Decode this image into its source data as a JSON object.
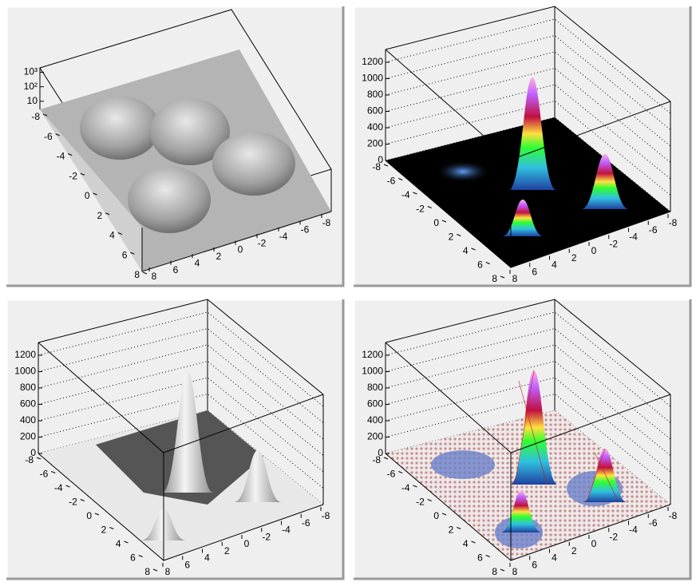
{
  "chart_data": [
    {
      "type": "surface",
      "log_z": true,
      "zlim": [
        1,
        2000
      ],
      "zticks": [
        10,
        {
          "value": 100,
          "label": "10²"
        },
        {
          "value": 1000,
          "label": "10³"
        }
      ],
      "xlim": [
        8,
        -8
      ],
      "xticks": [
        8,
        6,
        4,
        2,
        0,
        -2,
        -4,
        -6,
        -8
      ],
      "ylim": [
        -8,
        8
      ],
      "yticks": [
        -8,
        -6,
        -4,
        -2,
        0,
        2,
        4,
        6,
        8
      ],
      "color": "#a8a8a8"
    },
    {
      "type": "surface",
      "log_z": false,
      "zlim": [
        0,
        1350
      ],
      "zticks": [
        0,
        200,
        400,
        600,
        800,
        1000,
        1200
      ],
      "xlim": [
        8,
        -8
      ],
      "xticks": [
        8,
        6,
        4,
        2,
        0,
        -2,
        -4,
        -6,
        -8
      ],
      "ylim": [
        -8,
        8
      ],
      "yticks": [
        -8,
        -6,
        -4,
        -2,
        0,
        2,
        4,
        6,
        8
      ],
      "color": "rainbow",
      "floor": "#000000"
    },
    {
      "type": "surface",
      "log_z": false,
      "zlim": [
        0,
        1350
      ],
      "zticks": [
        0,
        200,
        400,
        600,
        800,
        1000,
        1200
      ],
      "xlim": [
        8,
        -8
      ],
      "xticks": [
        8,
        6,
        4,
        2,
        0,
        -2,
        -4,
        -6,
        -8
      ],
      "ylim": [
        -8,
        8
      ],
      "yticks": [
        -8,
        -6,
        -4,
        -2,
        0,
        2,
        4,
        6,
        8
      ],
      "color": "#d0d0d0",
      "floor": "#e8e8e8"
    },
    {
      "type": "surface",
      "log_z": false,
      "zlim": [
        0,
        1350
      ],
      "zticks": [
        0,
        200,
        400,
        600,
        800,
        1000,
        1200
      ],
      "xlim": [
        8,
        -8
      ],
      "xticks": [
        8,
        6,
        4,
        2,
        0,
        -2,
        -4,
        -6,
        -8
      ],
      "ylim": [
        -8,
        8
      ],
      "yticks": [
        -8,
        -6,
        -4,
        -2,
        0,
        2,
        4,
        6,
        8
      ],
      "color": "rainbow-mesh",
      "floor": "#f4f4f4"
    }
  ]
}
